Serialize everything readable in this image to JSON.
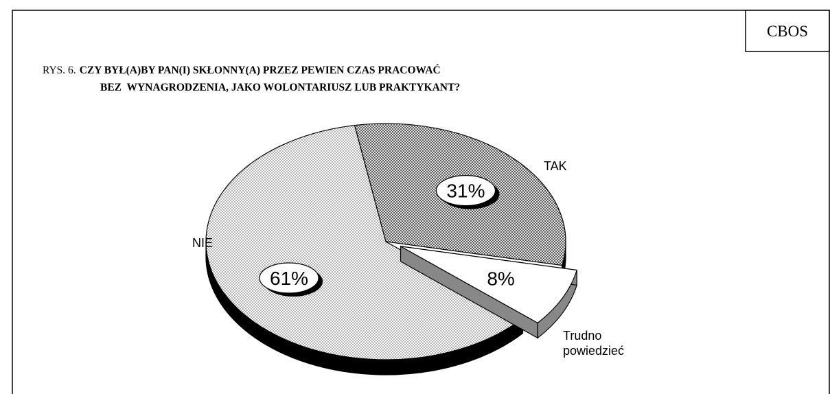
{
  "source": "CBOS",
  "chart_data": {
    "type": "pie",
    "figure_label": "RYS. 6.",
    "title": [
      "CZY BYŁ(A)BY PAN(I) SKŁONNY(A) PRZEZ PEWIEN CZAS PRACOWAĆ",
      "BEZ  WYNAGRODZENIA, JAKO WOLONTARIUSZ LUB PRAKTYKANT?"
    ],
    "categories": [
      "TAK",
      "Trudno powiedzieć",
      "NIE"
    ],
    "values": [
      31,
      8,
      61
    ],
    "value_labels": [
      "31%",
      "8%",
      "61%"
    ]
  }
}
